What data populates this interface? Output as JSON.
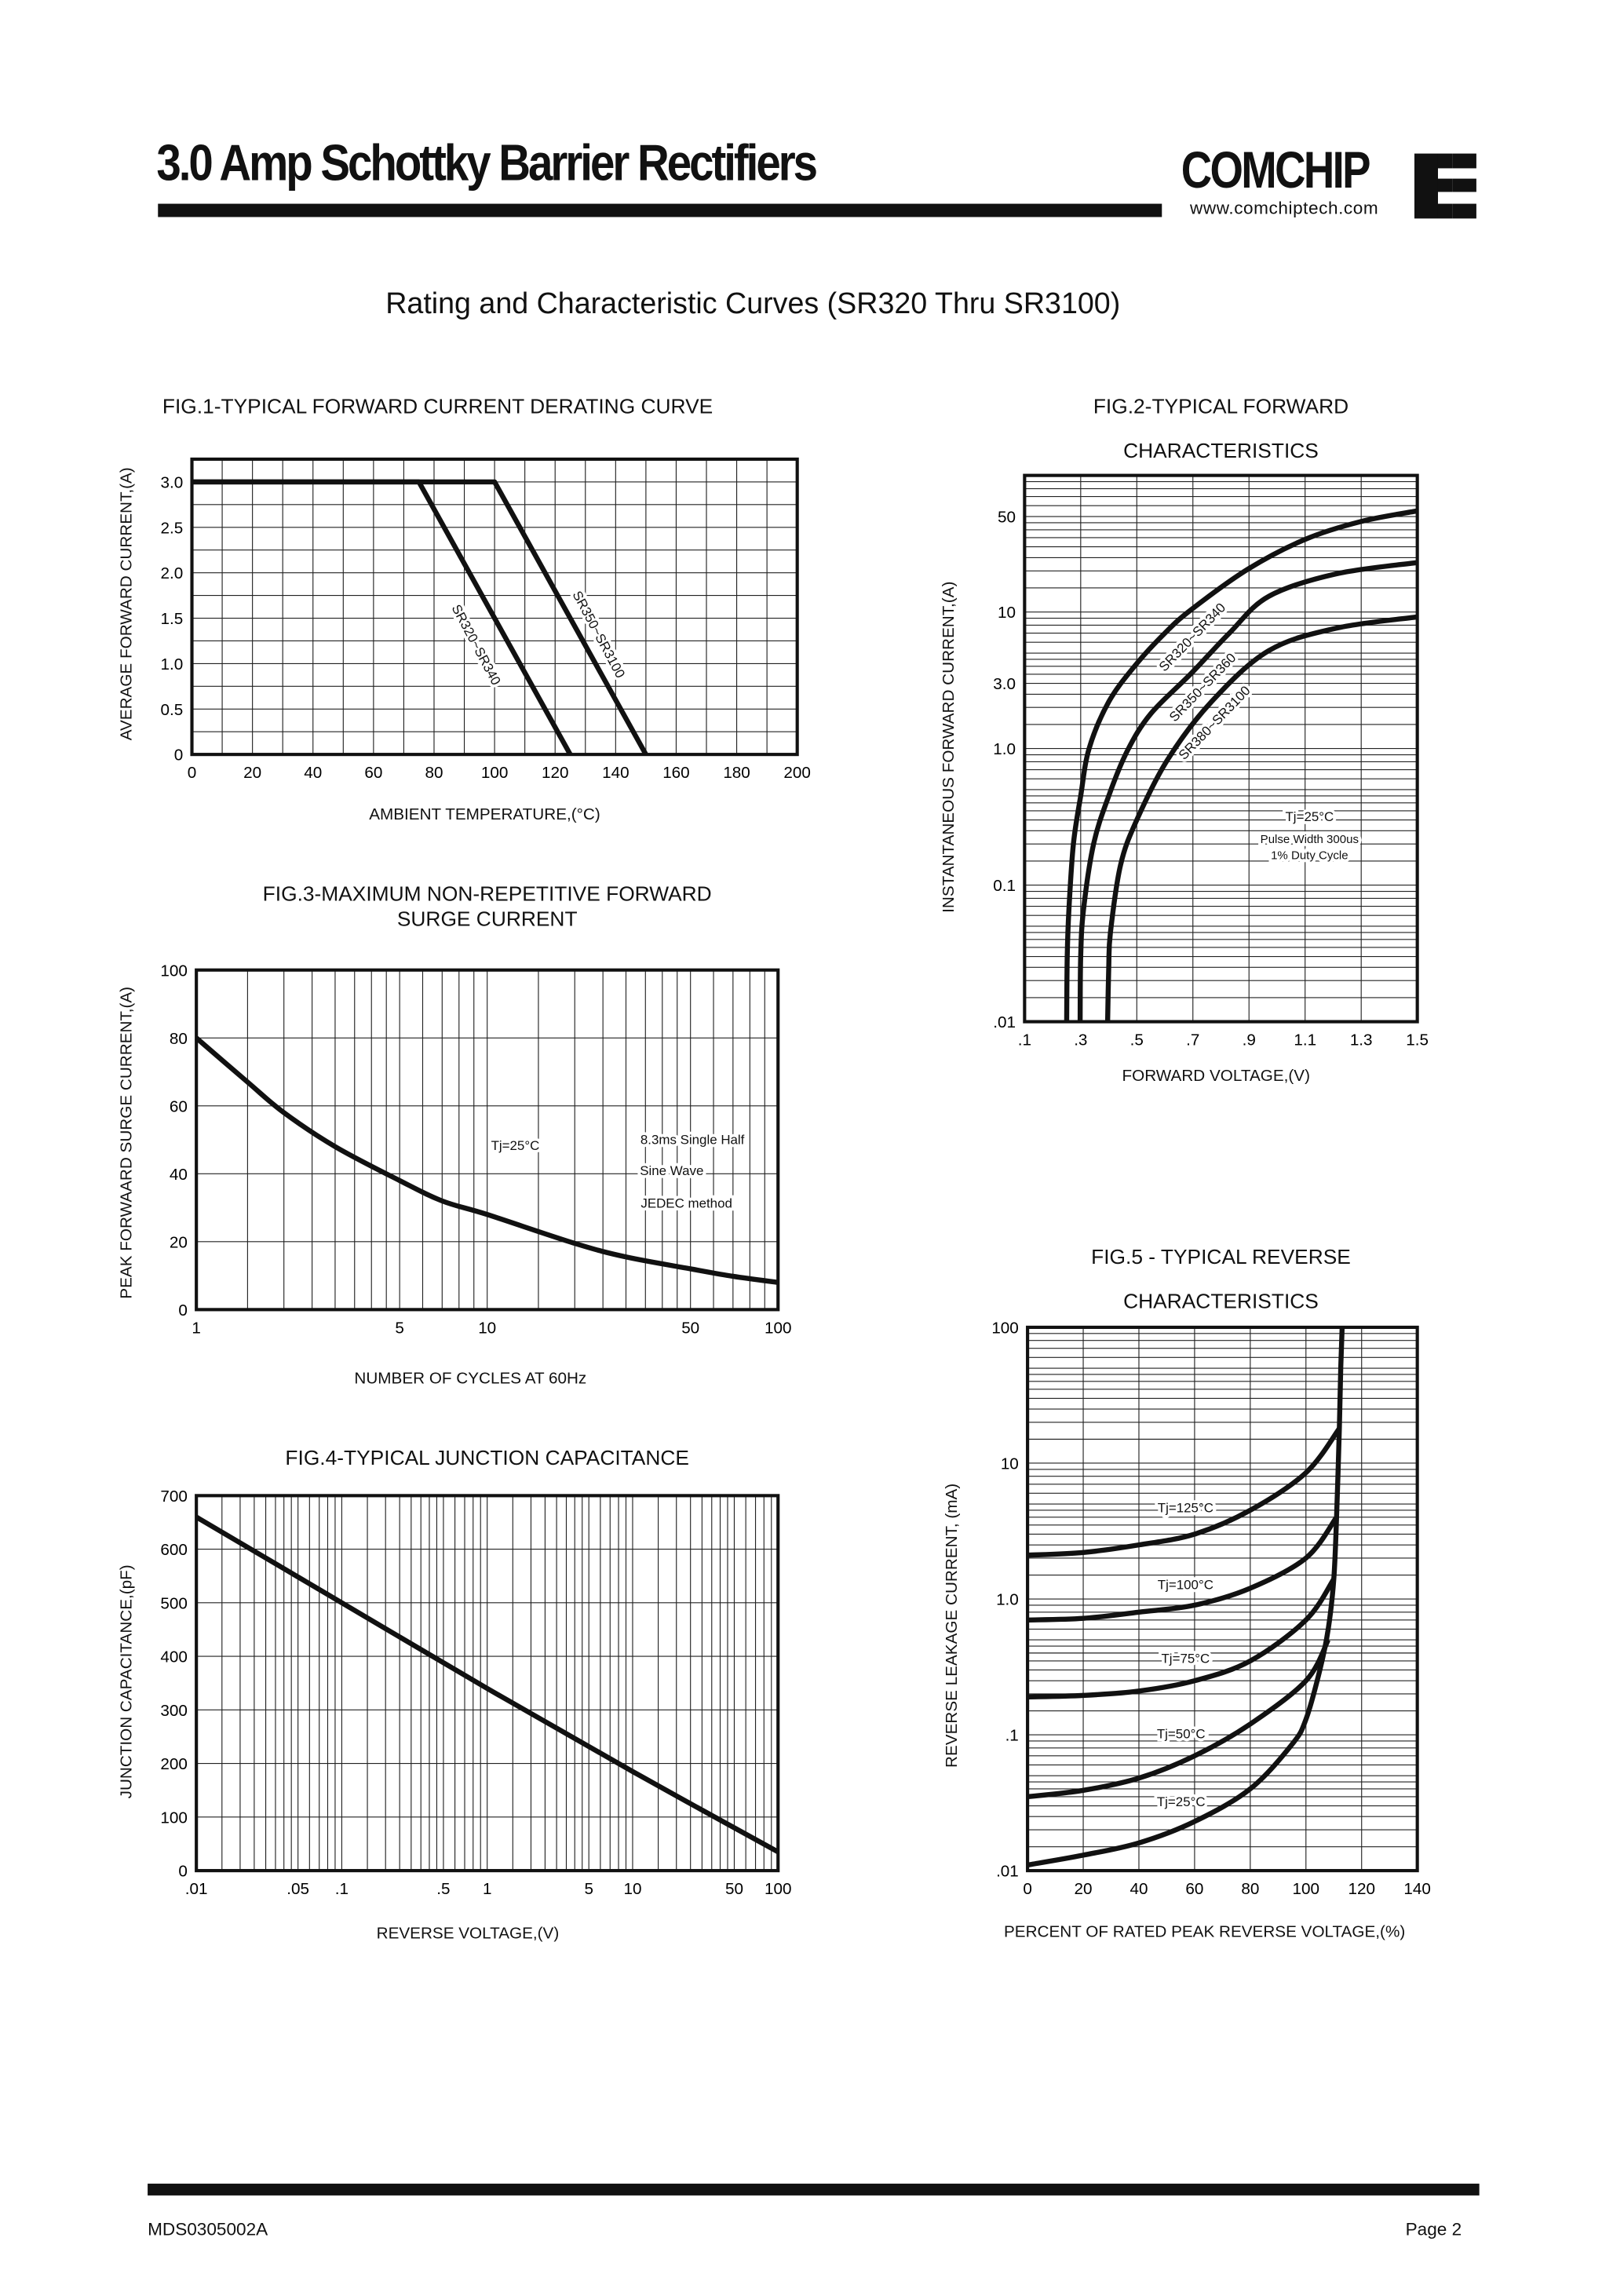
{
  "header": {
    "title": "3.0 Amp Schottky Barrier Rectifiers",
    "brand": "COMCHIP",
    "brand_url": "www.comchiptech.com"
  },
  "subtitle": "Rating and Characteristic Curves (SR320 Thru SR3100)",
  "footer": {
    "doc_id": "MDS0305002A",
    "page": "Page 2"
  },
  "chart_data": [
    {
      "type": "line",
      "title": "FIG.1-TYPICAL FORWARD CURRENT DERATING CURVE",
      "xlabel": "AMBIENT TEMPERATURE,(°C)",
      "ylabel": "AVERAGE FORWARD CURRENT,(A)",
      "xlim": [
        0,
        200
      ],
      "ylim": [
        0,
        3.25
      ],
      "xscale": "linear",
      "yscale": "linear",
      "grid": true,
      "x_ticks": [
        {
          "v": 0,
          "label": "0"
        },
        {
          "v": 20,
          "label": "20"
        },
        {
          "v": 40,
          "label": "40"
        },
        {
          "v": 60,
          "label": "60"
        },
        {
          "v": 80,
          "label": "80"
        },
        {
          "v": 100,
          "label": "100"
        },
        {
          "v": 120,
          "label": "120"
        },
        {
          "v": 140,
          "label": "140"
        },
        {
          "v": 160,
          "label": "160"
        },
        {
          "v": 180,
          "label": "180"
        },
        {
          "v": 200,
          "label": "200"
        }
      ],
      "y_ticks": [
        {
          "v": 0,
          "label": "0"
        },
        {
          "v": 0.5,
          "label": "0.5"
        },
        {
          "v": 1.0,
          "label": "1.0"
        },
        {
          "v": 1.5,
          "label": "1.5"
        },
        {
          "v": 2.0,
          "label": "2.0"
        },
        {
          "v": 2.5,
          "label": "2.5"
        },
        {
          "v": 3.0,
          "label": "3.0"
        }
      ],
      "series": [
        {
          "name": "SR320~SR340",
          "points": [
            [
              0,
              3.0
            ],
            [
              75,
              3.0
            ],
            [
              125,
              0
            ]
          ]
        },
        {
          "name": "SR350~SR3100",
          "points": [
            [
              0,
              3.0
            ],
            [
              100,
              3.0
            ],
            [
              150,
              0
            ]
          ]
        }
      ],
      "annotations": []
    },
    {
      "type": "line",
      "title": "FIG.2-TYPICAL FORWARD",
      "title2": "CHARACTERISTICS",
      "xlabel": "FORWARD VOLTAGE,(V)",
      "ylabel": "INSTANTANEOUS FORWARD CURRENT,(A)",
      "xlim": [
        0.1,
        1.5
      ],
      "ylim": [
        0.01,
        100
      ],
      "xscale": "linear",
      "yscale": "log",
      "grid": true,
      "x_ticks": [
        {
          "v": 0.1,
          "label": ".1"
        },
        {
          "v": 0.3,
          "label": ".3"
        },
        {
          "v": 0.5,
          "label": ".5"
        },
        {
          "v": 0.7,
          "label": ".7"
        },
        {
          "v": 0.9,
          "label": ".9"
        },
        {
          "v": 1.1,
          "label": "1.1"
        },
        {
          "v": 1.3,
          "label": "1.3"
        },
        {
          "v": 1.5,
          "label": "1.5"
        }
      ],
      "y_ticks": [
        {
          "v": 0.01,
          "label": ".01"
        },
        {
          "v": 0.1,
          "label": "0.1"
        },
        {
          "v": 1,
          "label": "1.0"
        },
        {
          "v": 3,
          "label": "3.0"
        },
        {
          "v": 10,
          "label": "10"
        },
        {
          "v": 50,
          "label": "50"
        }
      ],
      "series": [
        {
          "name": "SR320~SR340",
          "points": [
            [
              0.25,
              0.01
            ],
            [
              0.252,
              0.03
            ],
            [
              0.258,
              0.066
            ],
            [
              0.274,
              0.2
            ],
            [
              0.3,
              0.45
            ],
            [
              0.33,
              1.0
            ],
            [
              0.4,
              2.2
            ],
            [
              0.496,
              4.1
            ],
            [
              0.6,
              7
            ],
            [
              0.694,
              10.4
            ],
            [
              0.898,
              20.7
            ],
            [
              1.1,
              34
            ],
            [
              1.3,
              46
            ],
            [
              1.5,
              55
            ]
          ]
        },
        {
          "name": "SR350~SR360",
          "points": [
            [
              0.298,
              0.01
            ],
            [
              0.3,
              0.03
            ],
            [
              0.31,
              0.066
            ],
            [
              0.346,
              0.2
            ],
            [
              0.4,
              0.45
            ],
            [
              0.466,
              0.96
            ],
            [
              0.55,
              1.8
            ],
            [
              0.694,
              3.55
            ],
            [
              0.83,
              7
            ],
            [
              0.97,
              13
            ],
            [
              1.21,
              19
            ],
            [
              1.5,
              23
            ]
          ]
        },
        {
          "name": "SR380~SR3100",
          "points": [
            [
              0.396,
              0.01
            ],
            [
              0.4,
              0.025
            ],
            [
              0.406,
              0.045
            ],
            [
              0.442,
              0.14
            ],
            [
              0.5,
              0.3
            ],
            [
              0.61,
              0.83
            ],
            [
              0.766,
              2.2
            ],
            [
              0.97,
              5.2
            ],
            [
              1.21,
              7.6
            ],
            [
              1.5,
              9.2
            ]
          ]
        }
      ],
      "annotations": [
        "Tj=25°C",
        "Pulse Width 300us",
        "1% Duty Cycle"
      ]
    },
    {
      "type": "line",
      "title": "FIG.3-MAXIMUM NON-REPETITIVE FORWARD",
      "title2": "SURGE CURRENT",
      "xlabel": "NUMBER OF CYCLES AT 60Hz",
      "ylabel": "PEAK FORWAARD SURGE CURRENT,(A)",
      "xlim": [
        1,
        100
      ],
      "ylim": [
        0,
        100
      ],
      "xscale": "log",
      "yscale": "linear",
      "grid": true,
      "x_ticks": [
        {
          "v": 1,
          "label": "1"
        },
        {
          "v": 5,
          "label": "5"
        },
        {
          "v": 10,
          "label": "10"
        },
        {
          "v": 50,
          "label": "50"
        },
        {
          "v": 100,
          "label": "100"
        }
      ],
      "y_ticks": [
        {
          "v": 0,
          "label": "0"
        },
        {
          "v": 20,
          "label": "20"
        },
        {
          "v": 40,
          "label": "40"
        },
        {
          "v": 60,
          "label": "60"
        },
        {
          "v": 80,
          "label": "80"
        },
        {
          "v": 100,
          "label": "100"
        }
      ],
      "series": [
        {
          "points": [
            [
              1,
              80
            ],
            [
              1.5,
              67
            ],
            [
              2,
              58
            ],
            [
              3,
              48
            ],
            [
              5,
              38
            ],
            [
              7,
              32
            ],
            [
              10,
              28
            ],
            [
              20,
              19.5
            ],
            [
              30,
              15.5
            ],
            [
              50,
              12
            ],
            [
              70,
              9.8
            ],
            [
              100,
              8
            ]
          ]
        }
      ],
      "annotations": [
        "Tj=25°C",
        "8.3ms Single Half",
        "Sine Wave",
        "JEDEC method"
      ]
    },
    {
      "type": "line",
      "title": "FIG.4-TYPICAL JUNCTION CAPACITANCE",
      "xlabel": "REVERSE VOLTAGE,(V)",
      "ylabel": "JUNCTION CAPACITANCE,(pF)",
      "xlim": [
        0.01,
        100
      ],
      "ylim": [
        0,
        700
      ],
      "xscale": "log",
      "yscale": "linear",
      "grid": true,
      "x_ticks": [
        {
          "v": 0.01,
          "label": ".01"
        },
        {
          "v": 0.05,
          "label": ".05"
        },
        {
          "v": 0.1,
          "label": ".1"
        },
        {
          "v": 0.5,
          "label": ".5"
        },
        {
          "v": 1,
          "label": "1"
        },
        {
          "v": 5,
          "label": "5"
        },
        {
          "v": 10,
          "label": "10"
        },
        {
          "v": 50,
          "label": "50"
        },
        {
          "v": 100,
          "label": "100"
        }
      ],
      "y_ticks": [
        {
          "v": 0,
          "label": "0"
        },
        {
          "v": 100,
          "label": "100"
        },
        {
          "v": 200,
          "label": "200"
        },
        {
          "v": 300,
          "label": "300"
        },
        {
          "v": 400,
          "label": "400"
        },
        {
          "v": 500,
          "label": "500"
        },
        {
          "v": 600,
          "label": "600"
        },
        {
          "v": 700,
          "label": "700"
        }
      ],
      "series": [
        {
          "points": [
            [
              0.01,
              660
            ],
            [
              0.1,
              500
            ],
            [
              1,
              340
            ],
            [
              10,
              185
            ],
            [
              100,
              35
            ]
          ]
        }
      ],
      "annotations": []
    },
    {
      "type": "line",
      "title": "FIG.5 - TYPICAL REVERSE",
      "title2": "CHARACTERISTICS",
      "xlabel": "PERCENT OF RATED PEAK REVERSE VOLTAGE,(%)",
      "ylabel": "REVERSE LEAKAGE CURRENT, (mA)",
      "xlim": [
        0,
        140
      ],
      "ylim": [
        0.01,
        100
      ],
      "xscale": "linear",
      "yscale": "log",
      "grid": true,
      "x_ticks": [
        {
          "v": 0,
          "label": "0"
        },
        {
          "v": 20,
          "label": "20"
        },
        {
          "v": 40,
          "label": "40"
        },
        {
          "v": 60,
          "label": "60"
        },
        {
          "v": 80,
          "label": "80"
        },
        {
          "v": 100,
          "label": "100"
        },
        {
          "v": 120,
          "label": "120"
        },
        {
          "v": 140,
          "label": "140"
        }
      ],
      "y_ticks": [
        {
          "v": 0.01,
          "label": ".01"
        },
        {
          "v": 0.1,
          "label": ".1"
        },
        {
          "v": 1,
          "label": "1.0"
        },
        {
          "v": 10,
          "label": "10"
        },
        {
          "v": 100,
          "label": "100"
        }
      ],
      "series": [
        {
          "name": "Tj=125°C",
          "points": [
            [
              0,
              2.1
            ],
            [
              20,
              2.2
            ],
            [
              40,
              2.5
            ],
            [
              60,
              3.0
            ],
            [
              80,
              4.5
            ],
            [
              100,
              8.5
            ],
            [
              112,
              18
            ]
          ]
        },
        {
          "name": "Tj=100°C",
          "points": [
            [
              0,
              0.7
            ],
            [
              20,
              0.72
            ],
            [
              40,
              0.8
            ],
            [
              60,
              0.9
            ],
            [
              80,
              1.2
            ],
            [
              100,
              2.0
            ],
            [
              111,
              4
            ]
          ]
        },
        {
          "name": "Tj=75°C",
          "points": [
            [
              0,
              0.19
            ],
            [
              20,
              0.195
            ],
            [
              40,
              0.21
            ],
            [
              60,
              0.25
            ],
            [
              80,
              0.35
            ],
            [
              100,
              0.7
            ],
            [
              110,
              1.4
            ]
          ]
        },
        {
          "name": "Tj=50°C",
          "points": [
            [
              0,
              0.035
            ],
            [
              20,
              0.039
            ],
            [
              40,
              0.048
            ],
            [
              60,
              0.07
            ],
            [
              80,
              0.12
            ],
            [
              100,
              0.25
            ],
            [
              108,
              0.5
            ]
          ]
        },
        {
          "name": "Tj=25°C",
          "points": [
            [
              0,
              0.011
            ],
            [
              20,
              0.013
            ],
            [
              40,
              0.016
            ],
            [
              60,
              0.023
            ],
            [
              80,
              0.04
            ],
            [
              95,
              0.085
            ],
            [
              100,
              0.13
            ],
            [
              105,
              0.3
            ],
            [
              108,
              0.6
            ],
            [
              110,
              1.4
            ],
            [
              111,
              4
            ],
            [
              112,
              18
            ],
            [
              112.5,
              50
            ],
            [
              113,
              100
            ]
          ]
        }
      ],
      "annotations": []
    }
  ]
}
